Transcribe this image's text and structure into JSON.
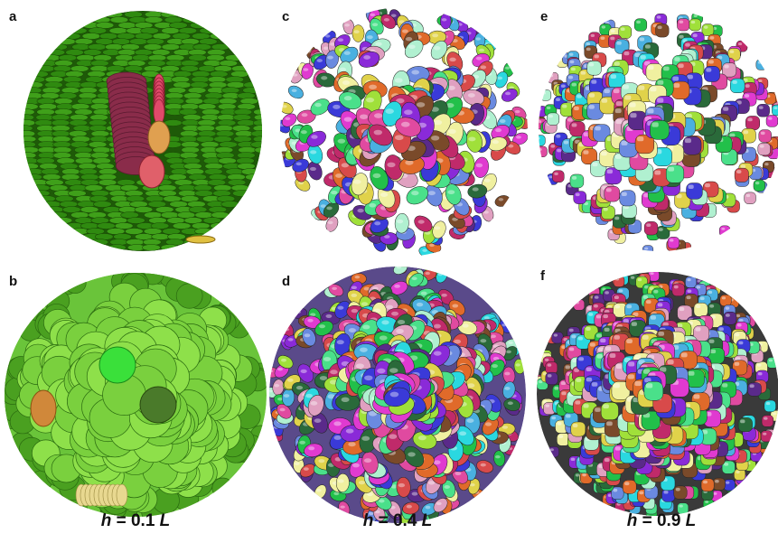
{
  "figure": {
    "panels": [
      {
        "letter": "a",
        "kind": "cutaway-discs-green",
        "ratio": "0.1"
      },
      {
        "letter": "b",
        "kind": "sphere-discs-green",
        "ratio": "0.1"
      },
      {
        "letter": "c",
        "kind": "cutaway-discs-multicolor",
        "ratio": "0.4"
      },
      {
        "letter": "d",
        "kind": "sphere-discs-multicolor",
        "ratio": "0.4"
      },
      {
        "letter": "e",
        "kind": "cutaway-cubes-multicolor",
        "ratio": "0.9"
      },
      {
        "letter": "f",
        "kind": "sphere-cubes-multicolor",
        "ratio": "0.9"
      }
    ],
    "captions": [
      {
        "symbol": "h",
        "eq": " = ",
        "value": "0.1",
        "unit": "L"
      },
      {
        "symbol": "h",
        "eq": " = ",
        "value": "0.4",
        "unit": "L"
      },
      {
        "symbol": "h",
        "eq": " = ",
        "value": "0.9",
        "unit": "L"
      }
    ],
    "colors": {
      "green_dark": "#2f8a10",
      "green_light": "#8ee04a",
      "highlight_maroon": "#8a2c4a",
      "highlight_tan": "#e0a050"
    }
  }
}
